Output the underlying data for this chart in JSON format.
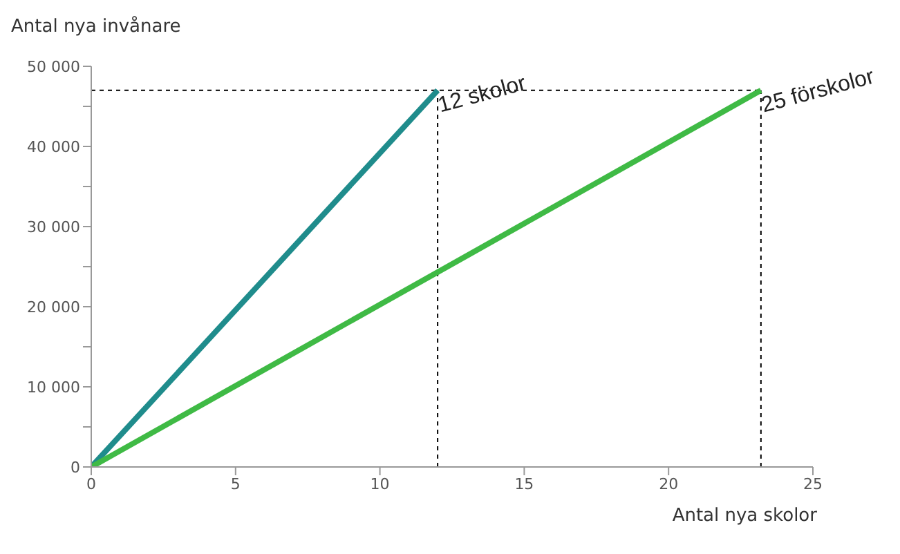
{
  "chart_data": {
    "type": "line",
    "xlabel": "Antal nya skolor",
    "ylabel": "Antal nya invånare",
    "series": [
      {
        "color": "#1f8c8c",
        "x": [
          0,
          12
        ],
        "values": [
          0,
          47000
        ]
      },
      {
        "color": "#3fba45",
        "x": [
          0,
          23.2
        ],
        "values": [
          0,
          47000
        ]
      }
    ],
    "xlim": [
      0,
      25
    ],
    "xticks": [
      0,
      5,
      10,
      15,
      20,
      25
    ],
    "ylim": [
      0,
      50000
    ],
    "yticks": [
      {
        "value": 0,
        "label": "0"
      },
      {
        "value": 5000,
        "label": null
      },
      {
        "value": 10000,
        "label": "10 000"
      },
      {
        "value": 15000,
        "label": null
      },
      {
        "value": 20000,
        "label": "20 000"
      },
      {
        "value": 25000,
        "label": null
      },
      {
        "value": 30000,
        "label": "30 000"
      },
      {
        "value": 35000,
        "label": null
      },
      {
        "value": 40000,
        "label": "40 000"
      },
      {
        "value": 45000,
        "label": null
      },
      {
        "value": 50000,
        "label": "50 000"
      }
    ],
    "ref_lines": [
      {
        "axis": "y",
        "value": 47000,
        "line_style": "dashed",
        "color": "#000000"
      },
      {
        "axis": "x",
        "value": 12,
        "line_style": "dashed",
        "color": "#000000"
      },
      {
        "axis": "x",
        "value": 23.2,
        "line_style": "dashed",
        "color": "#000000"
      }
    ],
    "annotations": [
      {
        "text": "12 skolor",
        "x": 12,
        "y": 47000
      },
      {
        "text": "25 förskolor",
        "x": 23.2,
        "y": 47000
      }
    ],
    "grid": false,
    "legend": false,
    "marker": "none",
    "line_style": "solid"
  }
}
